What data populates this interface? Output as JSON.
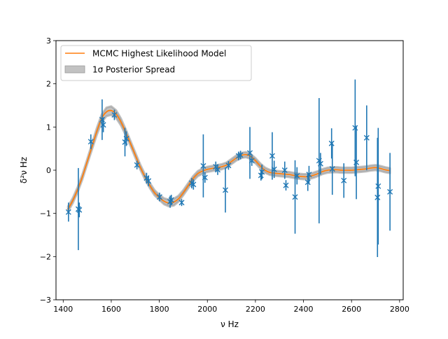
{
  "chart_data": {
    "type": "line",
    "xlabel": "ν Hz",
    "ylabel": "δ²ν Hz",
    "xlim": [
      1370,
      2815
    ],
    "ylim": [
      -3,
      3
    ],
    "xticks": [
      1400,
      1600,
      1800,
      2000,
      2200,
      2400,
      2600,
      2800
    ],
    "yticks": [
      -3,
      -2,
      -1,
      0,
      1,
      2,
      3
    ],
    "grid": false,
    "legend_position": "upper-left",
    "colors": {
      "model": "#ff7f0e",
      "spread": "#999999",
      "data": "#1f77b4"
    },
    "legend": [
      {
        "label": "MCMC Highest Likelihood Model",
        "kind": "line"
      },
      {
        "label": "1σ Posterior Spread",
        "kind": "patch"
      }
    ],
    "model": {
      "name": "MCMC Highest Likelihood Model",
      "x": [
        1420,
        1440,
        1460,
        1480,
        1500,
        1520,
        1540,
        1560,
        1580,
        1600,
        1620,
        1640,
        1660,
        1680,
        1700,
        1720,
        1740,
        1760,
        1780,
        1800,
        1820,
        1840,
        1860,
        1880,
        1900,
        1920,
        1940,
        1960,
        1980,
        2000,
        2020,
        2040,
        2060,
        2080,
        2100,
        2120,
        2140,
        2160,
        2180,
        2200,
        2220,
        2240,
        2260,
        2280,
        2300,
        2320,
        2340,
        2360,
        2380,
        2400,
        2420,
        2440,
        2460,
        2480,
        2500,
        2520,
        2540,
        2560,
        2580,
        2600,
        2620,
        2640,
        2660,
        2680,
        2700,
        2720,
        2740,
        2760
      ],
      "y": [
        -0.9,
        -0.7,
        -0.45,
        -0.15,
        0.2,
        0.55,
        0.9,
        1.2,
        1.35,
        1.38,
        1.3,
        1.12,
        0.88,
        0.62,
        0.35,
        0.08,
        -0.15,
        -0.35,
        -0.52,
        -0.63,
        -0.72,
        -0.76,
        -0.74,
        -0.66,
        -0.52,
        -0.36,
        -0.2,
        -0.08,
        -0.02,
        0.02,
        0.04,
        0.06,
        0.08,
        0.12,
        0.2,
        0.28,
        0.34,
        0.36,
        0.32,
        0.22,
        0.1,
        0.0,
        -0.05,
        -0.07,
        -0.08,
        -0.09,
        -0.1,
        -0.12,
        -0.14,
        -0.15,
        -0.15,
        -0.12,
        -0.08,
        -0.03,
        0.0,
        0.01,
        0.01,
        0.0,
        0.0,
        0.0,
        0.01,
        0.02,
        0.03,
        0.05,
        0.06,
        0.04,
        0.01,
        -0.01
      ],
      "spread": [
        0.06,
        0.06,
        0.06,
        0.06,
        0.06,
        0.07,
        0.08,
        0.09,
        0.1,
        0.1,
        0.09,
        0.08,
        0.07,
        0.06,
        0.06,
        0.06,
        0.06,
        0.06,
        0.06,
        0.06,
        0.07,
        0.08,
        0.08,
        0.07,
        0.06,
        0.06,
        0.06,
        0.06,
        0.06,
        0.06,
        0.06,
        0.06,
        0.06,
        0.06,
        0.06,
        0.06,
        0.06,
        0.06,
        0.06,
        0.06,
        0.06,
        0.06,
        0.06,
        0.06,
        0.06,
        0.06,
        0.06,
        0.06,
        0.06,
        0.06,
        0.06,
        0.06,
        0.06,
        0.06,
        0.06,
        0.06,
        0.06,
        0.06,
        0.06,
        0.06,
        0.06,
        0.06,
        0.06,
        0.06,
        0.06,
        0.06,
        0.06,
        0.06
      ]
    },
    "points": [
      {
        "x": 1422,
        "y": -0.97,
        "err": 0.22
      },
      {
        "x": 1463,
        "y": -0.9,
        "err": 0.95
      },
      {
        "x": 1467,
        "y": -0.92,
        "err": 0.17
      },
      {
        "x": 1515,
        "y": 0.66,
        "err": 0.17
      },
      {
        "x": 1562,
        "y": 1.17,
        "err": 0.47
      },
      {
        "x": 1567,
        "y": 1.05,
        "err": 0.17
      },
      {
        "x": 1613,
        "y": 1.28,
        "err": 0.12
      },
      {
        "x": 1657,
        "y": 0.65,
        "err": 0.33
      },
      {
        "x": 1663,
        "y": 0.73,
        "err": 0.17
      },
      {
        "x": 1707,
        "y": 0.12,
        "err": 0.1
      },
      {
        "x": 1747,
        "y": -0.18,
        "err": 0.12
      },
      {
        "x": 1755,
        "y": -0.25,
        "err": 0.12
      },
      {
        "x": 1801,
        "y": -0.62,
        "err": 0.1
      },
      {
        "x": 1845,
        "y": -0.73,
        "err": 0.14
      },
      {
        "x": 1850,
        "y": -0.69,
        "err": 0.12
      },
      {
        "x": 1893,
        "y": -0.75,
        "err": 0.08
      },
      {
        "x": 1935,
        "y": -0.3,
        "err": 0.12
      },
      {
        "x": 1942,
        "y": -0.33,
        "err": 0.12
      },
      {
        "x": 1983,
        "y": 0.1,
        "err": 0.73
      },
      {
        "x": 1990,
        "y": -0.17,
        "err": 0.12
      },
      {
        "x": 2035,
        "y": 0.08,
        "err": 0.12
      },
      {
        "x": 2043,
        "y": 0.01,
        "err": 0.12
      },
      {
        "x": 2075,
        "y": -0.46,
        "err": 0.52
      },
      {
        "x": 2088,
        "y": 0.11,
        "err": 0.1
      },
      {
        "x": 2130,
        "y": 0.33,
        "err": 0.1
      },
      {
        "x": 2138,
        "y": 0.35,
        "err": 0.1
      },
      {
        "x": 2177,
        "y": 0.4,
        "err": 0.6
      },
      {
        "x": 2185,
        "y": 0.22,
        "err": 0.12
      },
      {
        "x": 2223,
        "y": -0.12,
        "err": 0.12
      },
      {
        "x": 2227,
        "y": -0.04,
        "err": 0.17
      },
      {
        "x": 2270,
        "y": 0.33,
        "err": 0.55
      },
      {
        "x": 2278,
        "y": 0.02,
        "err": 0.2
      },
      {
        "x": 2322,
        "y": 0.0,
        "err": 0.2
      },
      {
        "x": 2327,
        "y": -0.35,
        "err": 0.12
      },
      {
        "x": 2365,
        "y": -0.62,
        "err": 0.85
      },
      {
        "x": 2373,
        "y": -0.13,
        "err": 0.2
      },
      {
        "x": 2418,
        "y": -0.28,
        "err": 0.2
      },
      {
        "x": 2423,
        "y": -0.1,
        "err": 0.2
      },
      {
        "x": 2465,
        "y": 0.22,
        "err": 1.45
      },
      {
        "x": 2471,
        "y": 0.15,
        "err": 0.25
      },
      {
        "x": 2517,
        "y": 0.62,
        "err": 0.35
      },
      {
        "x": 2520,
        "y": 0.03,
        "err": 0.6
      },
      {
        "x": 2568,
        "y": -0.24,
        "err": 0.4
      },
      {
        "x": 2615,
        "y": 0.98,
        "err": 1.12
      },
      {
        "x": 2620,
        "y": 0.18,
        "err": 0.85
      },
      {
        "x": 2663,
        "y": 0.75,
        "err": 0.75
      },
      {
        "x": 2708,
        "y": -0.63,
        "err": 1.38
      },
      {
        "x": 2711,
        "y": -0.37,
        "err": 1.35
      },
      {
        "x": 2760,
        "y": -0.5,
        "err": 0.9
      }
    ]
  }
}
